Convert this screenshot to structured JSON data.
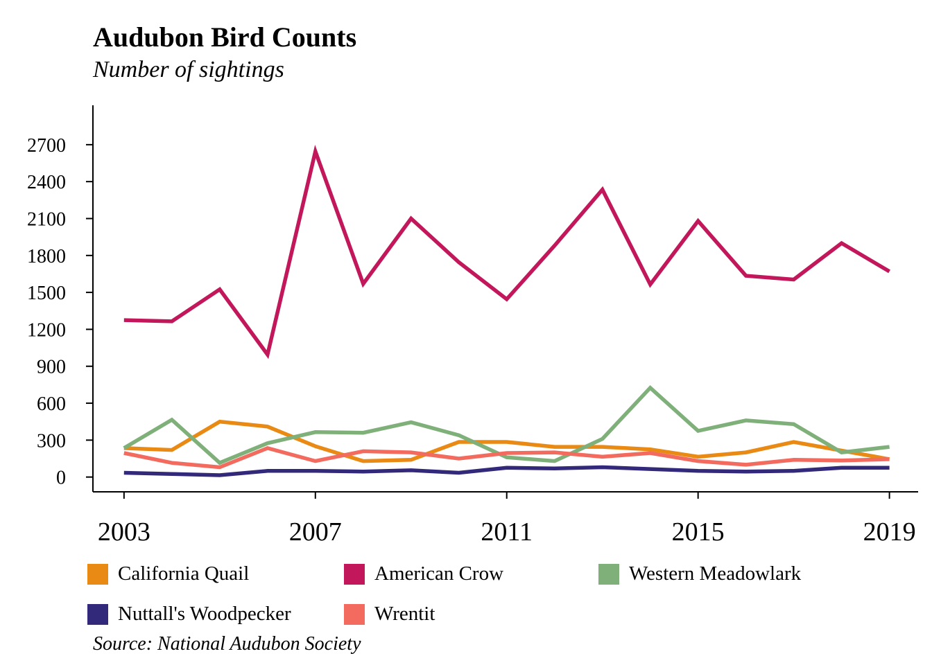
{
  "chart_data": {
    "type": "line",
    "title": "Audubon Bird Counts",
    "subtitle": "Number of sightings",
    "source": "Source: National Audubon Society",
    "x": [
      2003,
      2004,
      2005,
      2006,
      2007,
      2008,
      2009,
      2010,
      2011,
      2012,
      2013,
      2014,
      2015,
      2016,
      2017,
      2018,
      2019
    ],
    "x_ticks": [
      2003,
      2007,
      2011,
      2015,
      2019
    ],
    "y_ticks": [
      0,
      300,
      600,
      900,
      1200,
      1500,
      1800,
      2100,
      2400,
      2700
    ],
    "xlim": [
      2002.35,
      2019.6
    ],
    "ylim": [
      -120,
      3020
    ],
    "grid": false,
    "legend_position": "bottom",
    "series": [
      {
        "name": "California Quail",
        "color": "#E98A15",
        "values": [
          235,
          220,
          450,
          410,
          250,
          130,
          140,
          285,
          285,
          245,
          245,
          225,
          165,
          200,
          285,
          215,
          145
        ]
      },
      {
        "name": "American Crow",
        "color": "#C2185B",
        "values": [
          1275,
          1265,
          1525,
          995,
          2645,
          1570,
          2100,
          1745,
          1445,
          1880,
          2335,
          1565,
          2080,
          1635,
          1605,
          1900,
          1670
        ]
      },
      {
        "name": "Western Meadowlark",
        "color": "#7FB07A",
        "values": [
          235,
          465,
          115,
          275,
          365,
          360,
          445,
          340,
          160,
          130,
          310,
          725,
          375,
          460,
          430,
          200,
          245
        ]
      },
      {
        "name": "Nuttall's Woodpecker",
        "color": "#33297A",
        "values": [
          35,
          25,
          15,
          50,
          50,
          45,
          55,
          35,
          75,
          70,
          80,
          65,
          50,
          45,
          50,
          75,
          75
        ]
      },
      {
        "name": "Wrentit",
        "color": "#F26B5E",
        "values": [
          195,
          115,
          80,
          235,
          130,
          210,
          200,
          150,
          195,
          200,
          165,
          195,
          130,
          100,
          140,
          135,
          145
        ]
      }
    ]
  }
}
